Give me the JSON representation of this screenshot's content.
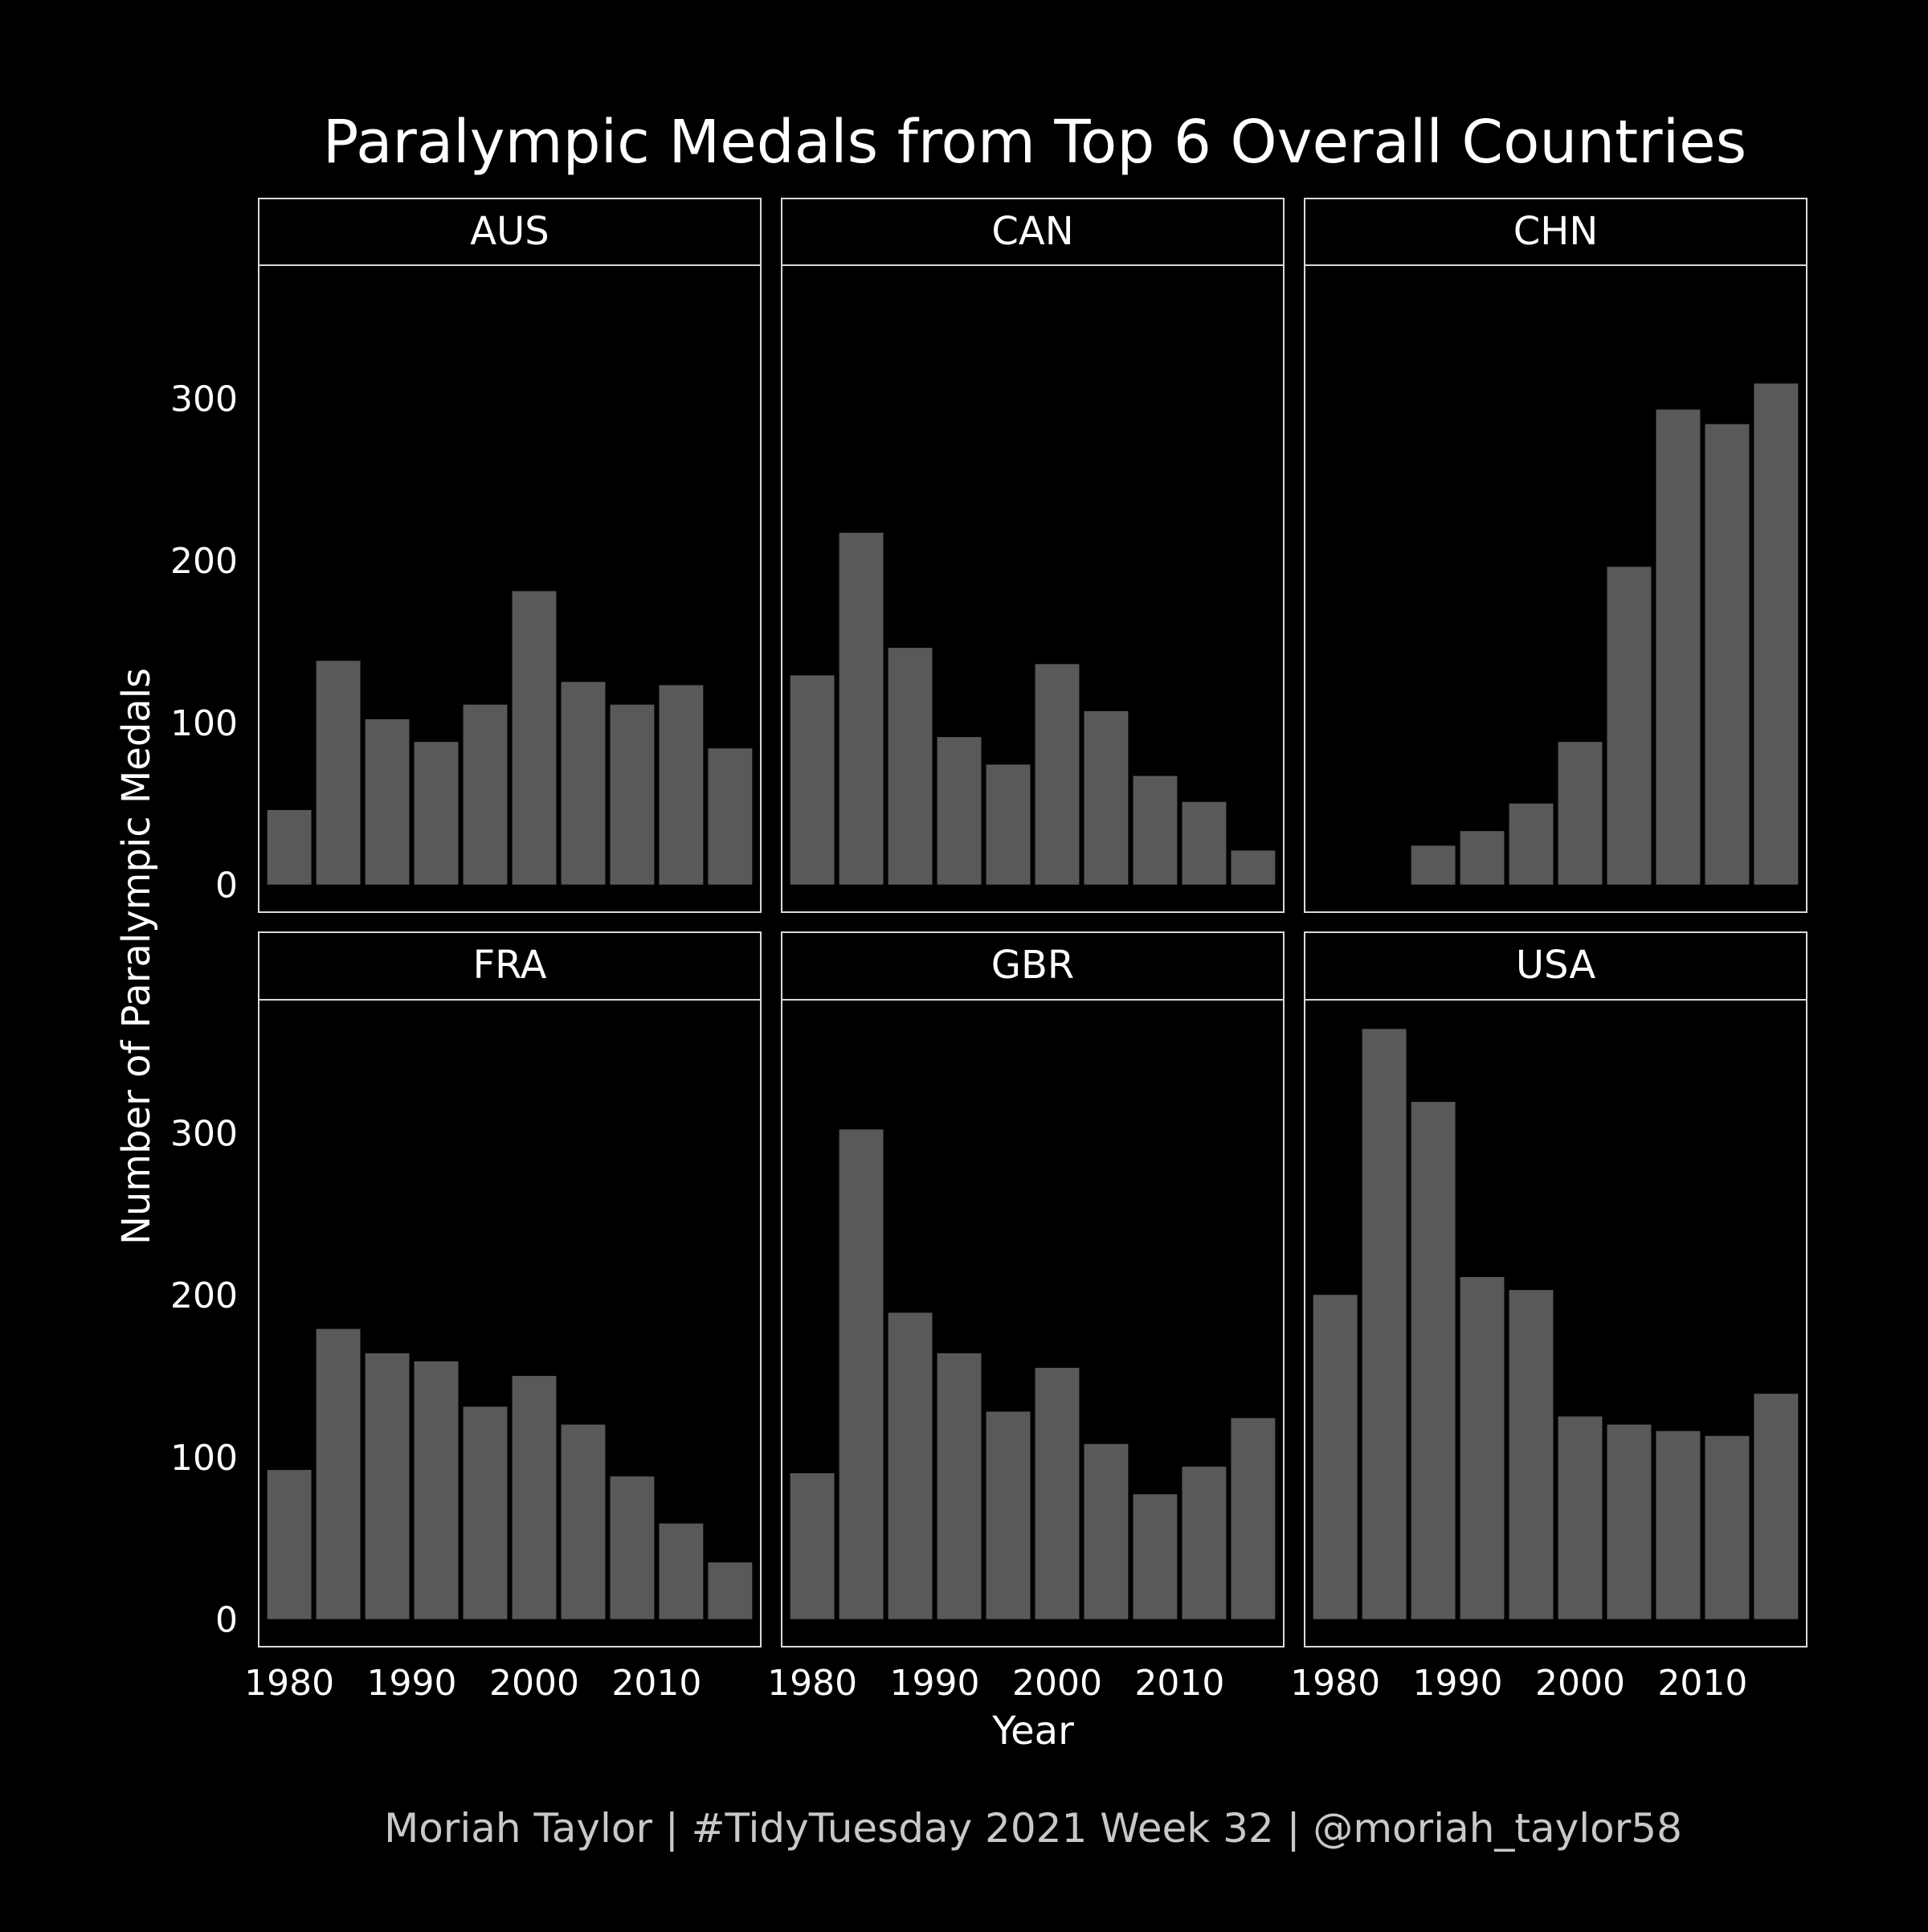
{
  "title": "Paralympic Medals from Top 6 Overall Countries",
  "caption": "Moriah Taylor | #TidyTuesday 2021 Week 32 | @moriah_taylor58",
  "colors": {
    "background": "#000000",
    "bar": "#595959",
    "text": "#ffffff",
    "frame": "#d9d9d9"
  },
  "chart_data": {
    "type": "bar",
    "facet_layout": "2 rows x 3 columns, shared axes",
    "xlabel": "Year",
    "ylabel": "Number of Paralympic Medals",
    "x_ticks": [
      1980,
      1990,
      2000,
      2010
    ],
    "y_ticks": [
      0,
      100,
      200,
      300
    ],
    "xlim": [
      1977.5,
      2018.5
    ],
    "ylim": [
      -17,
      382
    ],
    "years": [
      1980,
      1984,
      1988,
      1992,
      1996,
      2000,
      2004,
      2008,
      2012,
      2016
    ],
    "grid": false,
    "panels": [
      {
        "name": "AUS",
        "values": [
          46,
          138,
          102,
          88,
          111,
          181,
          125,
          111,
          123,
          84
        ]
      },
      {
        "name": "CAN",
        "values": [
          129,
          217,
          146,
          91,
          74,
          136,
          107,
          67,
          51,
          21
        ]
      },
      {
        "name": "CHN",
        "values": [
          null,
          24,
          33,
          50,
          88,
          196,
          293,
          284,
          309
        ],
        "years": [
          1984,
          1988,
          1992,
          1996,
          2000,
          2004,
          2008,
          2012,
          2016
        ]
      },
      {
        "name": "FRA",
        "values": [
          92,
          179,
          164,
          159,
          131,
          150,
          120,
          88,
          59,
          35
        ]
      },
      {
        "name": "GBR",
        "values": [
          90,
          302,
          189,
          164,
          128,
          155,
          108,
          77,
          94,
          124
        ]
      },
      {
        "name": "USA",
        "values": [
          200,
          364,
          319,
          211,
          203,
          125,
          120,
          116,
          113,
          139
        ]
      }
    ]
  }
}
